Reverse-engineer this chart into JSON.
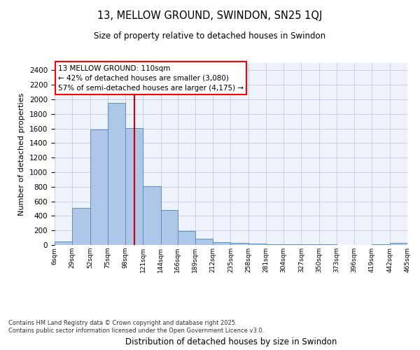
{
  "title": "13, MELLOW GROUND, SWINDON, SN25 1QJ",
  "subtitle": "Size of property relative to detached houses in Swindon",
  "xlabel": "Distribution of detached houses by size in Swindon",
  "ylabel": "Number of detached properties",
  "annotation_title": "13 MELLOW GROUND: 110sqm",
  "annotation_line1": "← 42% of detached houses are smaller (3,080)",
  "annotation_line2": "57% of semi-detached houses are larger (4,175) →",
  "vline_x": 110,
  "bin_edges": [
    6,
    29,
    52,
    75,
    98,
    121,
    144,
    166,
    189,
    212,
    235,
    258,
    281,
    304,
    327,
    350,
    373,
    396,
    419,
    442,
    465
  ],
  "bar_heights": [
    50,
    510,
    1590,
    1950,
    1610,
    805,
    480,
    195,
    90,
    40,
    30,
    20,
    10,
    5,
    5,
    5,
    0,
    0,
    10,
    25
  ],
  "bar_color": "#aec6e8",
  "bar_edge_color": "#5a8fc0",
  "vline_color": "#cc0000",
  "background_color": "#eef2fb",
  "grid_color": "#c8d0e8",
  "ylim": [
    0,
    2500
  ],
  "yticks": [
    0,
    200,
    400,
    600,
    800,
    1000,
    1200,
    1400,
    1600,
    1800,
    2000,
    2200,
    2400
  ],
  "footer_line1": "Contains HM Land Registry data © Crown copyright and database right 2025.",
  "footer_line2": "Contains public sector information licensed under the Open Government Licence v3.0.",
  "tick_labels": [
    "6sqm",
    "29sqm",
    "52sqm",
    "75sqm",
    "98sqm",
    "121sqm",
    "144sqm",
    "166sqm",
    "189sqm",
    "212sqm",
    "235sqm",
    "258sqm",
    "281sqm",
    "304sqm",
    "327sqm",
    "350sqm",
    "373sqm",
    "396sqm",
    "419sqm",
    "442sqm",
    "465sqm"
  ]
}
